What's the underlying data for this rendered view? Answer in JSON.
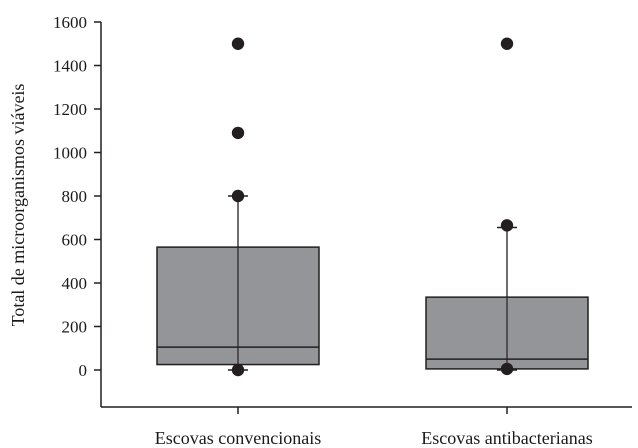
{
  "chart_data": {
    "type": "box",
    "title": "",
    "xlabel": "",
    "ylabel": "Total de microorganismos viáveis",
    "ylim": [
      -170,
      1600
    ],
    "yticks": [
      0,
      200,
      400,
      600,
      800,
      1000,
      1200,
      1400,
      1600
    ],
    "categories": [
      "Escovas convencionais",
      "Escovas antibacterianas"
    ],
    "boxes": [
      {
        "category": "Escovas convencionais",
        "whisker_low": 0,
        "q1": 25,
        "median": 105,
        "q3": 565,
        "whisker_high": 800,
        "outliers": [
          0,
          800,
          1090,
          1500
        ]
      },
      {
        "category": "Escovas antibacterianas",
        "whisker_low": 0,
        "q1": 5,
        "median": 50,
        "q3": 335,
        "whisker_high": 655,
        "outliers": [
          5,
          665,
          1500
        ]
      }
    ],
    "colors": {
      "box_fill": "#939598",
      "stroke": "#231f20",
      "point": "#231f20"
    },
    "grid": false,
    "legend": "none"
  }
}
